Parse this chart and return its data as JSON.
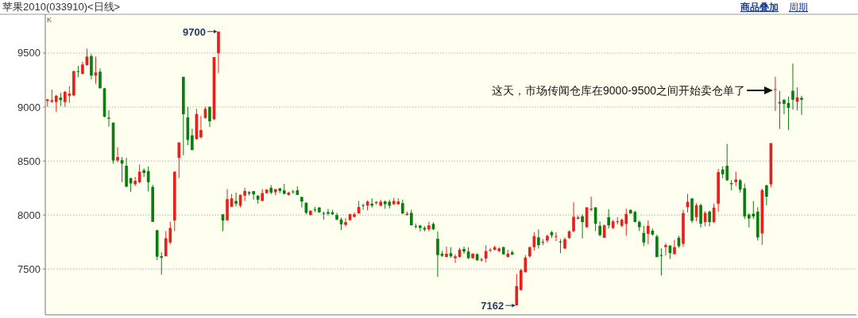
{
  "chart_data": {
    "type": "candlestick",
    "title": "苹果2010(033910)<日线>",
    "ylabel": "K",
    "categories": [
      null,
      null,
      null,
      null,
      null,
      null,
      null,
      null,
      null,
      null,
      null,
      null,
      null,
      null,
      null,
      null,
      null,
      null,
      null,
      null,
      null,
      null,
      null,
      null,
      null,
      null,
      null,
      null,
      null,
      null,
      null,
      null,
      null,
      null,
      null,
      null,
      null,
      null,
      null,
      null,
      null,
      null,
      null,
      null,
      null,
      null,
      null,
      null,
      null,
      null,
      null,
      null,
      null,
      null,
      null,
      null,
      null,
      null,
      null,
      null,
      null,
      null,
      null,
      null,
      null,
      null,
      null,
      null,
      null,
      null,
      null,
      null,
      null,
      null,
      null,
      null,
      null,
      null,
      null,
      null,
      null,
      null,
      null,
      null,
      null,
      null,
      null,
      null,
      null,
      null,
      null,
      null,
      null,
      null,
      null,
      null,
      null,
      null,
      null,
      null,
      null,
      null,
      null,
      null,
      null,
      null,
      null,
      null,
      null,
      null,
      null,
      null,
      null,
      null,
      null,
      null,
      null,
      null,
      null,
      null,
      null,
      null,
      null,
      null,
      null,
      null,
      null,
      null,
      null,
      null,
      null,
      null,
      null,
      null,
      null,
      null,
      null,
      null,
      null,
      null,
      null,
      null,
      null,
      null,
      null,
      null,
      null,
      null,
      null,
      null,
      null,
      null,
      null,
      null,
      null,
      null,
      null,
      null,
      null,
      null,
      null,
      null,
      null,
      null,
      null,
      null,
      null,
      null,
      null,
      null,
      null,
      null,
      null,
      null,
      null,
      null,
      null,
      null,
      null,
      null,
      null,
      null,
      null,
      null,
      null
    ],
    "ohlc": [
      [
        9057,
        9076,
        9003,
        9071
      ],
      [
        9049,
        9162,
        9039,
        9064
      ],
      [
        9047,
        9113,
        8954,
        9105
      ],
      [
        9088,
        9132,
        9010,
        9064
      ],
      [
        9047,
        9150,
        9003,
        9142
      ],
      [
        9105,
        9194,
        9039,
        9125
      ],
      [
        9108,
        9338,
        9101,
        9333
      ],
      [
        9333,
        9382,
        9277,
        9326
      ],
      [
        9309,
        9419,
        9304,
        9395
      ],
      [
        9390,
        9542,
        9382,
        9468
      ],
      [
        9473,
        9493,
        9255,
        9292
      ],
      [
        9292,
        9468,
        9216,
        9321
      ],
      [
        9328,
        9358,
        9174,
        9174
      ],
      [
        9174,
        9179,
        8905,
        8912
      ],
      [
        8902,
        8971,
        8819,
        8892
      ],
      [
        8856,
        8856,
        8476,
        8505
      ],
      [
        8505,
        8628,
        8488,
        8537
      ],
      [
        8508,
        8537,
        8304,
        8476
      ],
      [
        8456,
        8530,
        8255,
        8263
      ],
      [
        8341,
        8346,
        8214,
        8292
      ],
      [
        8285,
        8353,
        8268,
        8317
      ],
      [
        8304,
        8469,
        8292,
        8402
      ],
      [
        8415,
        8432,
        8353,
        8390
      ],
      [
        8407,
        8451,
        8218,
        8304
      ],
      [
        8260,
        8280,
        7937,
        7937
      ],
      [
        7859,
        7863,
        7582,
        7614
      ],
      [
        7618,
        7655,
        7447,
        7604
      ],
      [
        7618,
        7851,
        7618,
        7785
      ],
      [
        7746,
        7937,
        7729,
        7881
      ],
      [
        7949,
        8402,
        7851,
        8402
      ],
      [
        8530,
        8672,
        8341,
        8672
      ],
      [
        9280,
        9280,
        8554,
        8934
      ],
      [
        8905,
        9003,
        8647,
        8696
      ],
      [
        8738,
        8799,
        8598,
        8603
      ],
      [
        8704,
        8985,
        8696,
        8936
      ],
      [
        8721,
        8917,
        8709,
        8787
      ],
      [
        8900,
        9003,
        8892,
        8983
      ],
      [
        9003,
        9003,
        8814,
        8868
      ],
      [
        8887,
        9463,
        8880,
        9463
      ],
      [
        9500,
        9700,
        9314,
        9700
      ],
      [
        8006,
        8006,
        7851,
        7949
      ],
      [
        7951,
        8240,
        7946,
        8147
      ],
      [
        8076,
        8196,
        8076,
        8154
      ],
      [
        8130,
        8208,
        8081,
        8105
      ],
      [
        8086,
        8191,
        8069,
        8186
      ],
      [
        8179,
        8252,
        8130,
        8223
      ],
      [
        8211,
        8223,
        8179,
        8198
      ],
      [
        8221,
        8223,
        8142,
        8191
      ],
      [
        8179,
        8184,
        8105,
        8142
      ],
      [
        8130,
        8240,
        8130,
        8203
      ],
      [
        8203,
        8240,
        8198,
        8235
      ],
      [
        8252,
        8277,
        8191,
        8208
      ],
      [
        8211,
        8240,
        8184,
        8240
      ],
      [
        8247,
        8252,
        8203,
        8223
      ],
      [
        8228,
        8289,
        8191,
        8196
      ],
      [
        8186,
        8216,
        8179,
        8208
      ],
      [
        8218,
        8233,
        8198,
        8213
      ],
      [
        8228,
        8265,
        8186,
        8186
      ],
      [
        8167,
        8171,
        8069,
        8125
      ],
      [
        8113,
        8118,
        8007,
        8020
      ],
      [
        8000,
        8044,
        7995,
        8039
      ],
      [
        8051,
        8076,
        8027,
        8047
      ],
      [
        8069,
        8074,
        8020,
        8025
      ],
      [
        8015,
        8032,
        7958,
        8010
      ],
      [
        8027,
        8056,
        7995,
        8012
      ],
      [
        8025,
        8049,
        8000,
        8007
      ],
      [
        8000,
        8020,
        7951,
        7958
      ],
      [
        7958,
        7975,
        7860,
        7914
      ],
      [
        7909,
        7971,
        7892,
        7934
      ],
      [
        7953,
        8012,
        7946,
        8007
      ],
      [
        7983,
        8025,
        7978,
        8007
      ],
      [
        8015,
        8130,
        8012,
        8074
      ],
      [
        8091,
        8105,
        8049,
        8086
      ],
      [
        8088,
        8135,
        8044,
        8125
      ],
      [
        8105,
        8154,
        8069,
        8086
      ],
      [
        8110,
        8130,
        8093,
        8120
      ],
      [
        8086,
        8142,
        8081,
        8123
      ],
      [
        8125,
        8135,
        8056,
        8100
      ],
      [
        8123,
        8142,
        8061,
        8086
      ],
      [
        8100,
        8159,
        8093,
        8130
      ],
      [
        8100,
        8154,
        8093,
        8125
      ],
      [
        8110,
        8142,
        8007,
        8015
      ],
      [
        8000,
        8032,
        7995,
        8012
      ],
      [
        8020,
        8049,
        7904,
        7904
      ],
      [
        7897,
        7922,
        7873,
        7892
      ],
      [
        7902,
        7909,
        7848,
        7880
      ],
      [
        7880,
        7897,
        7848,
        7865
      ],
      [
        7868,
        7939,
        7848,
        7904
      ],
      [
        7917,
        7934,
        7860,
        7868
      ],
      [
        7780,
        7849,
        7427,
        7629
      ],
      [
        7641,
        7666,
        7612,
        7622
      ],
      [
        7612,
        7707,
        7605,
        7641
      ],
      [
        7646,
        7702,
        7605,
        7617
      ],
      [
        7600,
        7636,
        7556,
        7617
      ],
      [
        7612,
        7695,
        7605,
        7678
      ],
      [
        7685,
        7707,
        7641,
        7661
      ],
      [
        7661,
        7702,
        7593,
        7600
      ],
      [
        7600,
        7646,
        7593,
        7641
      ],
      [
        7636,
        7646,
        7576,
        7580
      ],
      [
        7583,
        7605,
        7568,
        7588
      ],
      [
        7597,
        7719,
        7561,
        7666
      ],
      [
        7671,
        7695,
        7654,
        7678
      ],
      [
        7678,
        7715,
        7671,
        7702
      ],
      [
        7666,
        7702,
        7654,
        7690
      ],
      [
        7702,
        7707,
        7636,
        7636
      ],
      [
        7612,
        7678,
        7605,
        7641
      ],
      [
        7654,
        7671,
        7629,
        7634
      ],
      [
        7162,
        7453,
        7162,
        7341
      ],
      [
        7305,
        7500,
        7300,
        7490
      ],
      [
        7471,
        7629,
        7466,
        7605
      ],
      [
        7617,
        7710,
        7605,
        7702
      ],
      [
        7702,
        7841,
        7671,
        7805
      ],
      [
        7793,
        7866,
        7690,
        7720
      ],
      [
        7744,
        7776,
        7720,
        7751
      ],
      [
        7763,
        7817,
        7744,
        7807
      ],
      [
        7841,
        7853,
        7788,
        7812
      ],
      [
        7798,
        7841,
        7758,
        7805
      ],
      [
        7754,
        7776,
        7646,
        7746
      ],
      [
        7690,
        7793,
        7683,
        7776
      ],
      [
        7788,
        7856,
        7780,
        7849
      ],
      [
        7849,
        8117,
        7841,
        7983
      ],
      [
        7966,
        7995,
        7958,
        7978
      ],
      [
        7988,
        8007,
        7783,
        7934
      ],
      [
        7887,
        8071,
        7882,
        8071
      ],
      [
        8049,
        8169,
        8034,
        8059
      ],
      [
        8071,
        8071,
        7851,
        7919
      ],
      [
        7900,
        7941,
        7802,
        7814
      ],
      [
        7789,
        7912,
        7789,
        7904
      ],
      [
        7980,
        8054,
        7875,
        7904
      ],
      [
        7880,
        7956,
        7868,
        7941
      ],
      [
        7934,
        7980,
        7912,
        7941
      ],
      [
        7900,
        7966,
        7887,
        7956
      ],
      [
        7917,
        8059,
        7809,
        8010
      ],
      [
        8047,
        8054,
        8010,
        8015
      ],
      [
        8029,
        8039,
        7931,
        7936
      ],
      [
        7936,
        7949,
        7851,
        7887
      ],
      [
        7833,
        7900,
        7711,
        7745
      ],
      [
        7826,
        7949,
        7728,
        7900
      ],
      [
        7855,
        7875,
        7809,
        7819
      ],
      [
        7801,
        7819,
        7610,
        7610
      ],
      [
        7628,
        7691,
        7439,
        7620
      ],
      [
        7703,
        7740,
        7623,
        7721
      ],
      [
        7716,
        7721,
        7593,
        7647
      ],
      [
        7637,
        7770,
        7637,
        7703
      ],
      [
        7789,
        7806,
        7696,
        7711
      ],
      [
        7733,
        8047,
        7704,
        8017
      ],
      [
        8073,
        8195,
        8024,
        8122
      ],
      [
        8153,
        8158,
        7926,
        7946
      ],
      [
        7980,
        8109,
        7943,
        8090
      ],
      [
        8092,
        8105,
        7885,
        7919
      ],
      [
        7934,
        8036,
        7895,
        8019
      ],
      [
        8031,
        8041,
        7895,
        7934
      ],
      [
        7934,
        8105,
        7926,
        8068
      ],
      [
        8105,
        8427,
        8031,
        8397
      ],
      [
        8422,
        8451,
        8341,
        8378
      ],
      [
        8456,
        8658,
        8317,
        8322
      ],
      [
        8295,
        8324,
        8227,
        8285
      ],
      [
        8305,
        8402,
        8268,
        8329
      ],
      [
        8322,
        8334,
        8207,
        8236
      ],
      [
        8248,
        8292,
        7963,
        7987
      ],
      [
        8004,
        8017,
        7885,
        7968
      ],
      [
        8012,
        8129,
        7963,
        7987
      ],
      [
        8031,
        8073,
        7763,
        7792
      ],
      [
        7829,
        8244,
        7724,
        8231
      ],
      [
        8275,
        8280,
        8090,
        8170
      ],
      [
        8285,
        8666,
        8256,
        8666
      ],
      [
        9159,
        9281,
        8963,
        9166
      ],
      [
        9046,
        9151,
        8797,
        9034
      ],
      [
        9068,
        9073,
        8934,
        9029
      ],
      [
        9037,
        9098,
        8788,
        8993
      ],
      [
        9151,
        9403,
        8976,
        9068
      ],
      [
        9049,
        9183,
        8968,
        9090
      ],
      [
        9085,
        9105,
        8927,
        9068
      ],
      null,
      null,
      null,
      null,
      null,
      null,
      null,
      null,
      null,
      null,
      null,
      null
    ],
    "ylim": [
      7075,
      9860
    ],
    "yticks": [
      7500,
      8000,
      8500,
      9000,
      9500
    ],
    "grid": "y",
    "annotations": [
      "9700",
      "7162",
      "这天，市场传闻仓库在9000-9500之间开始卖仓单了",
      "商品叠加",
      "周期"
    ]
  }
}
